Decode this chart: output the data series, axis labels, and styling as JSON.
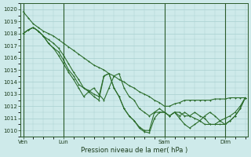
{
  "background_color": "#ceeaea",
  "grid_color": "#a8d0d0",
  "line_color": "#2d6e2d",
  "title": "Pression niveau de la mer( hPa )",
  "ylim": [
    1009.5,
    1020.5
  ],
  "yticks": [
    1010,
    1011,
    1012,
    1013,
    1014,
    1015,
    1016,
    1017,
    1018,
    1019,
    1020
  ],
  "xtick_labels": [
    "Ven",
    "Lun",
    "Sam",
    "Dim"
  ],
  "xtick_positions": [
    0,
    8,
    28,
    40
  ],
  "total_points": 45,
  "series1": [
    1019.8,
    1019.3,
    1018.8,
    1018.5,
    1018.2,
    1018.0,
    1017.8,
    1017.5,
    1017.2,
    1016.9,
    1016.6,
    1016.3,
    1016.0,
    1015.7,
    1015.4,
    1015.2,
    1015.0,
    1014.7,
    1014.5,
    1014.2,
    1014.0,
    1013.7,
    1013.5,
    1013.2,
    1013.0,
    1012.8,
    1012.5,
    1012.3,
    1012.0,
    1012.0,
    1012.2,
    1012.3,
    1012.5,
    1012.5,
    1012.5,
    1012.5,
    1012.5,
    1012.5,
    1012.6,
    1012.6,
    1012.6,
    1012.7,
    1012.7,
    1012.7,
    1012.7
  ],
  "series2": [
    1018.0,
    1018.3,
    1018.5,
    1018.2,
    1017.8,
    1017.5,
    1017.2,
    1016.8,
    1016.2,
    1015.5,
    1014.8,
    1014.2,
    1013.5,
    1013.2,
    1012.8,
    1012.5,
    1014.5,
    1014.7,
    1013.5,
    1012.8,
    1011.8,
    1011.2,
    1010.8,
    1010.2,
    1009.9,
    1009.8,
    1011.0,
    1011.5,
    1011.5,
    1011.2,
    1011.5,
    1011.0,
    1010.5,
    1010.2,
    1010.5,
    1010.8,
    1011.2,
    1011.5,
    1011.2,
    1010.8,
    1010.5,
    1010.8,
    1011.2,
    1011.8,
    1012.7
  ],
  "series3": [
    1018.0,
    1018.3,
    1018.5,
    1018.2,
    1017.8,
    1017.2,
    1016.8,
    1016.2,
    1015.5,
    1014.8,
    1014.2,
    1013.5,
    1012.8,
    1013.2,
    1013.5,
    1013.0,
    1012.5,
    1013.5,
    1014.5,
    1014.7,
    1013.5,
    1012.8,
    1012.5,
    1011.8,
    1011.5,
    1011.2,
    1011.5,
    1011.8,
    1011.5,
    1011.2,
    1011.5,
    1011.2,
    1011.5,
    1011.2,
    1011.0,
    1010.8,
    1010.5,
    1010.5,
    1010.5,
    1010.8,
    1011.0,
    1011.2,
    1011.5,
    1012.0,
    1012.7
  ],
  "series4": [
    1018.0,
    1018.3,
    1018.5,
    1018.2,
    1017.8,
    1017.2,
    1016.8,
    1016.5,
    1015.8,
    1015.0,
    1014.5,
    1013.8,
    1013.5,
    1013.3,
    1013.0,
    1012.8,
    1014.5,
    1014.7,
    1013.5,
    1012.8,
    1011.8,
    1011.2,
    1010.8,
    1010.3,
    1010.0,
    1010.0,
    1011.5,
    1011.5,
    1011.5,
    1011.2,
    1011.5,
    1011.5,
    1011.2,
    1011.2,
    1011.5,
    1011.2,
    1011.0,
    1010.5,
    1010.5,
    1010.5,
    1010.5,
    1010.8,
    1011.2,
    1011.8,
    1012.7
  ]
}
